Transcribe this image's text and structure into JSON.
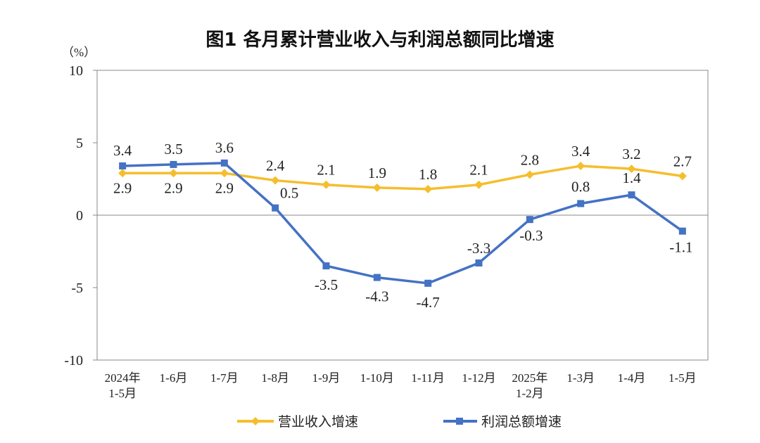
{
  "chart_data": {
    "type": "line",
    "title": "图1  各月累计营业收入与利润总额同比增速",
    "ylabel": "（%）",
    "ylim": [
      -10,
      10
    ],
    "yticks": [
      "10",
      "5",
      "0",
      "-5",
      "-10"
    ],
    "ytick_values": [
      10,
      5,
      0,
      -5,
      -10
    ],
    "grid": false,
    "legend_position": "bottom",
    "categories": [
      [
        "2024年",
        "1-5月"
      ],
      [
        "1-6月"
      ],
      [
        "1-7月"
      ],
      [
        "1-8月"
      ],
      [
        "1-9月"
      ],
      [
        "1-10月"
      ],
      [
        "1-11月"
      ],
      [
        "1-12月"
      ],
      [
        "2025年",
        "1-2月"
      ],
      [
        "1-3月"
      ],
      [
        "1-4月"
      ],
      [
        "1-5月"
      ]
    ],
    "series": [
      {
        "name": "营业收入增速",
        "color": "#F5BE2E",
        "marker": "diamond",
        "values": [
          2.9,
          2.9,
          2.9,
          2.4,
          2.1,
          1.9,
          1.8,
          2.1,
          2.8,
          3.4,
          3.2,
          2.7
        ],
        "labels": [
          "2.9",
          "2.9",
          "2.9",
          "2.4",
          "2.1",
          "1.9",
          "1.8",
          "2.1",
          "2.8",
          "3.4",
          "3.2",
          "2.7"
        ]
      },
      {
        "name": "利润总额增速",
        "color": "#4472C4",
        "marker": "square",
        "values": [
          3.4,
          3.5,
          3.6,
          0.5,
          -3.5,
          -4.3,
          -4.7,
          -3.3,
          -0.3,
          0.8,
          1.4,
          -1.1
        ],
        "labels": [
          "3.4",
          "3.5",
          "3.6",
          "0.5",
          "-3.5",
          "-4.3",
          "-4.7",
          "-3.3",
          "-0.3",
          "0.8",
          "1.4",
          "-1.1"
        ]
      }
    ]
  }
}
